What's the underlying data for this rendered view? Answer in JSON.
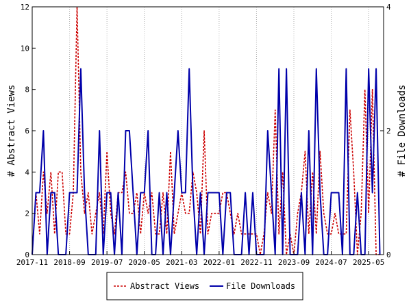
{
  "chart_data": {
    "type": "line",
    "title": "",
    "xlabel": "",
    "ylabel_left": "# Abstract Views",
    "ylabel_right": "# File Downloads",
    "ylim_left": [
      0,
      12
    ],
    "ylim_right": [
      0,
      4
    ],
    "yticks_left": [
      "0",
      "2",
      "4",
      "6",
      "8",
      "10",
      "12"
    ],
    "yticks_right": [
      "0",
      "2",
      "4"
    ],
    "xlim": [
      "2017-11",
      "2025-09"
    ],
    "xticks": [
      "2017-11",
      "2018-09",
      "2019-07",
      "2020-05",
      "2021-03",
      "2022-01",
      "2022-11",
      "2023-09",
      "2024-07",
      "2025-05"
    ],
    "grid": "vertical",
    "legend_position": "bottom-center",
    "colors": {
      "abstract_views": "#cc0000",
      "file_downloads": "#0000aa"
    },
    "series": [
      {
        "name": "Abstract Views",
        "axis": "left",
        "style": "dashed",
        "x": [
          "2017-11",
          "2017-12",
          "2018-01",
          "2018-02",
          "2018-03",
          "2018-04",
          "2018-05",
          "2018-06",
          "2018-07",
          "2018-08",
          "2018-09",
          "2018-10",
          "2018-11",
          "2018-12",
          "2019-01",
          "2019-02",
          "2019-03",
          "2019-04",
          "2019-05",
          "2019-06",
          "2019-07",
          "2019-08",
          "2019-09",
          "2019-10",
          "2019-11",
          "2019-12",
          "2020-01",
          "2020-02",
          "2020-03",
          "2020-04",
          "2020-05",
          "2020-06",
          "2020-07",
          "2020-08",
          "2020-09",
          "2020-10",
          "2020-11",
          "2020-12",
          "2021-01",
          "2021-02",
          "2021-03",
          "2021-04",
          "2021-05",
          "2021-06",
          "2021-07",
          "2021-08",
          "2021-09",
          "2021-10",
          "2021-11",
          "2021-12",
          "2022-01",
          "2022-02",
          "2022-03",
          "2022-04",
          "2022-05",
          "2022-06",
          "2022-07",
          "2022-08",
          "2022-09",
          "2022-10",
          "2022-11",
          "2022-12",
          "2023-01",
          "2023-02",
          "2023-03",
          "2023-04",
          "2023-05",
          "2023-06",
          "2023-07",
          "2023-08",
          "2023-09",
          "2023-10",
          "2023-11",
          "2023-12",
          "2024-01",
          "2024-02",
          "2024-03",
          "2024-04",
          "2024-05",
          "2024-06",
          "2024-07",
          "2024-08",
          "2024-09",
          "2024-10",
          "2024-11",
          "2024-12",
          "2025-01",
          "2025-02",
          "2025-03",
          "2025-04",
          "2025-05",
          "2025-06",
          "2025-07",
          "2025-08"
        ],
        "y": [
          0,
          3,
          1,
          4,
          2,
          4,
          1,
          4,
          4,
          1,
          1,
          3,
          12,
          4,
          2,
          3,
          1,
          2,
          3,
          1,
          5,
          2,
          1,
          3,
          3,
          4,
          2,
          2,
          3,
          1,
          3,
          2,
          3,
          1,
          1,
          3,
          1,
          5,
          1,
          2,
          3,
          2,
          2,
          4,
          3,
          1,
          6,
          1,
          2,
          2,
          2,
          3,
          3,
          2,
          1,
          2,
          1,
          1,
          1,
          1,
          1,
          0,
          1,
          3,
          2,
          7,
          1,
          4,
          0,
          1,
          0,
          2,
          3,
          5,
          1,
          4,
          1,
          5,
          2,
          1,
          1,
          2,
          1,
          1,
          1,
          7,
          4,
          0,
          2,
          8,
          2,
          8,
          0,
          0
        ]
      },
      {
        "name": "File Downloads",
        "axis": "right",
        "style": "solid",
        "x": [
          "2017-11",
          "2017-12",
          "2018-01",
          "2018-02",
          "2018-03",
          "2018-04",
          "2018-05",
          "2018-06",
          "2018-07",
          "2018-08",
          "2018-09",
          "2018-10",
          "2018-11",
          "2018-12",
          "2019-01",
          "2019-02",
          "2019-03",
          "2019-04",
          "2019-05",
          "2019-06",
          "2019-07",
          "2019-08",
          "2019-09",
          "2019-10",
          "2019-11",
          "2019-12",
          "2020-01",
          "2020-02",
          "2020-03",
          "2020-04",
          "2020-05",
          "2020-06",
          "2020-07",
          "2020-08",
          "2020-09",
          "2020-10",
          "2020-11",
          "2020-12",
          "2021-01",
          "2021-02",
          "2021-03",
          "2021-04",
          "2021-05",
          "2021-06",
          "2021-07",
          "2021-08",
          "2021-09",
          "2021-10",
          "2021-11",
          "2021-12",
          "2022-01",
          "2022-02",
          "2022-03",
          "2022-04",
          "2022-05",
          "2022-06",
          "2022-07",
          "2022-08",
          "2022-09",
          "2022-10",
          "2022-11",
          "2022-12",
          "2023-01",
          "2023-02",
          "2023-03",
          "2023-04",
          "2023-05",
          "2023-06",
          "2023-07",
          "2023-08",
          "2023-09",
          "2023-10",
          "2023-11",
          "2023-12",
          "2024-01",
          "2024-02",
          "2024-03",
          "2024-04",
          "2024-05",
          "2024-06",
          "2024-07",
          "2024-08",
          "2024-09",
          "2024-10",
          "2024-11",
          "2024-12",
          "2025-01",
          "2025-02",
          "2025-03",
          "2025-04",
          "2025-05",
          "2025-06",
          "2025-07",
          "2025-08"
        ],
        "y": [
          0,
          1,
          1,
          2,
          0,
          1,
          1,
          0,
          0,
          0,
          1,
          1,
          1,
          3,
          1,
          0,
          0,
          0,
          2,
          0,
          1,
          1,
          0,
          1,
          0,
          2,
          2,
          1,
          0,
          1,
          1,
          2,
          0,
          0,
          1,
          0,
          1,
          0,
          1,
          2,
          1,
          1,
          3,
          1,
          0,
          1,
          0,
          1,
          1,
          1,
          1,
          0,
          1,
          1,
          0,
          0,
          0,
          1,
          0,
          1,
          0,
          0,
          0,
          2,
          1,
          0,
          3,
          0,
          3,
          0,
          0,
          0,
          1,
          0,
          2,
          0,
          3,
          1,
          0,
          0,
          1,
          1,
          1,
          0,
          3,
          0,
          0,
          1,
          0,
          0,
          3,
          1,
          3,
          0
        ]
      }
    ]
  }
}
